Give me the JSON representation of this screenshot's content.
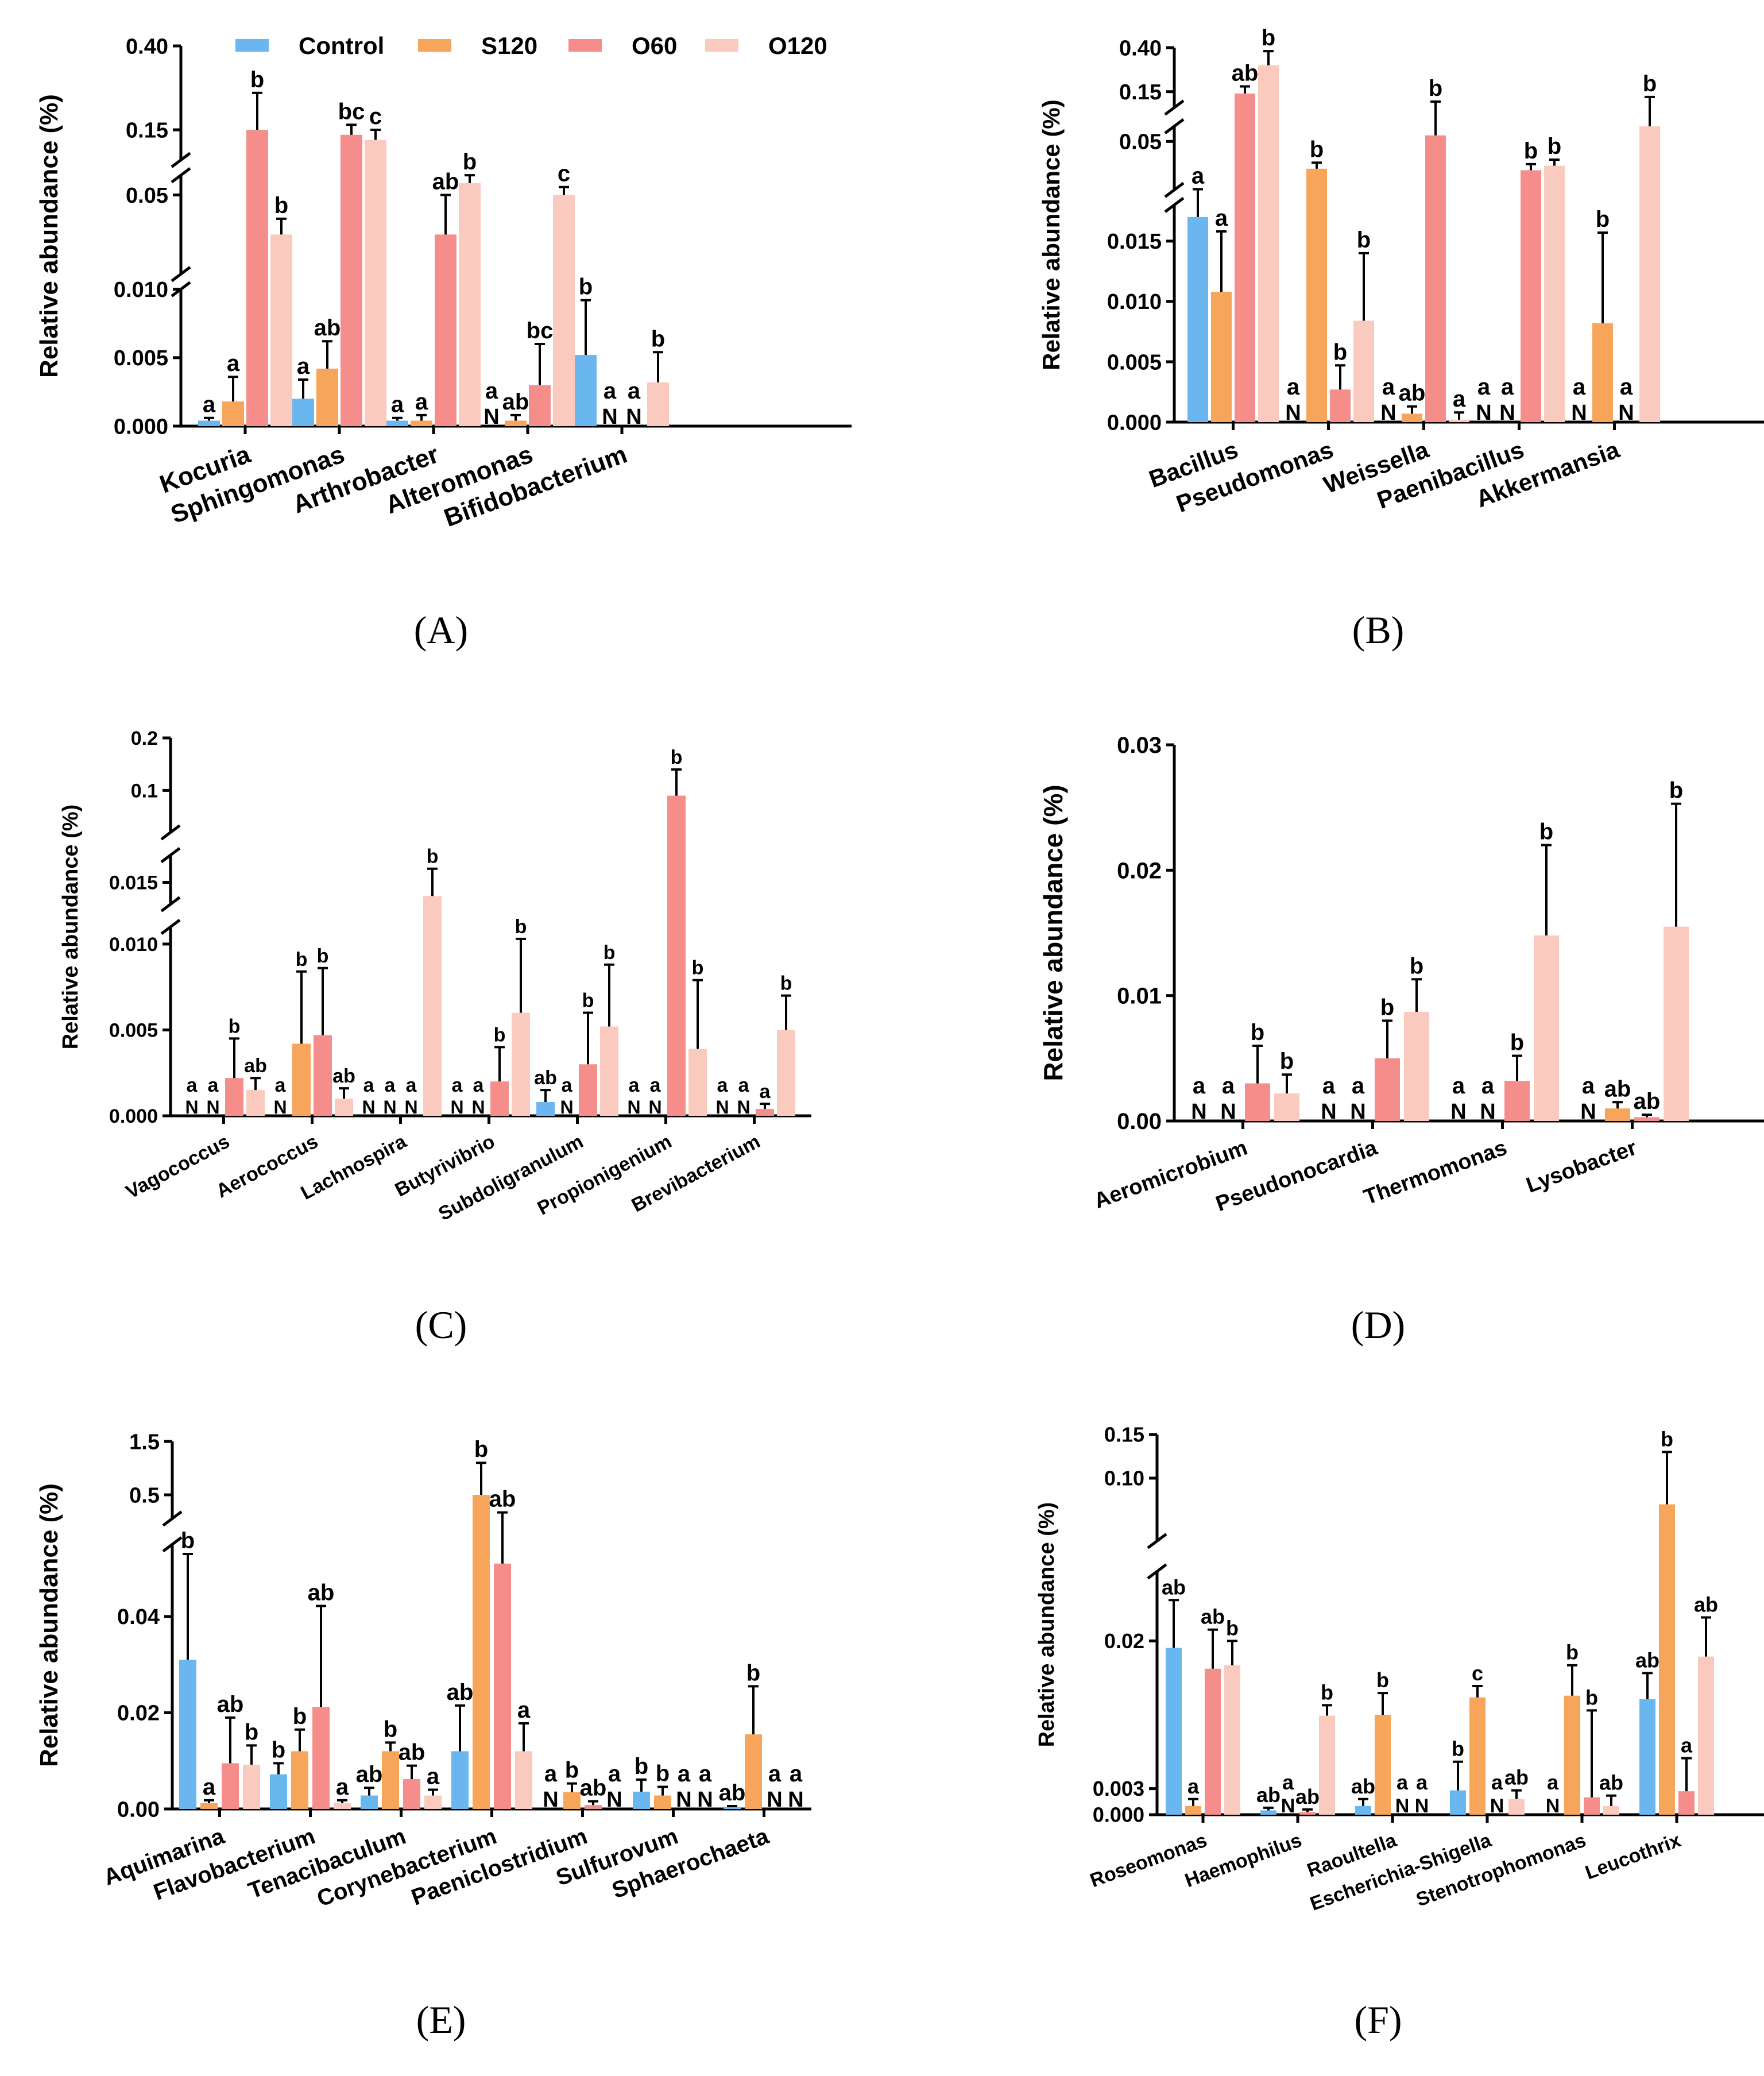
{
  "legend": {
    "series": [
      "Control",
      "S120",
      "O60",
      "O120"
    ],
    "colors": [
      "#6ab7f0",
      "#f7a55a",
      "#f58e8a",
      "#fbcabe"
    ]
  },
  "chart_data": [
    {
      "panel": "(A)",
      "type": "bar",
      "ylabel": "Relative abundance (%)",
      "categories": [
        "Kocuria",
        "Sphingomonas",
        "Arthrobacter",
        "Alteromonas",
        "Bifidobacterium"
      ],
      "axis_breaks": [
        {
          "range": [
            0,
            0.01
          ],
          "ticks": [
            0,
            0.005,
            0.01
          ],
          "tick_labels": [
            "0.000",
            "0.005",
            "0.010"
          ]
        },
        {
          "range": [
            0.01,
            0.06
          ],
          "ticks": [
            0.05
          ],
          "tick_labels": [
            "0.05"
          ]
        },
        {
          "range": [
            0.06,
            0.4
          ],
          "ticks": [
            0.15,
            0.4
          ],
          "tick_labels": [
            "0.15",
            "0.40"
          ]
        }
      ],
      "series": [
        {
          "name": "Control",
          "values": [
            0.0004,
            0.002,
            0.0004,
            0,
            0.0052
          ],
          "errors": [
            0.0002,
            0.0014,
            0.0002,
            0,
            0.004
          ],
          "sig": [
            "a",
            "a",
            "a",
            "a",
            "b"
          ],
          "nd": [
            false,
            false,
            false,
            true,
            false
          ]
        },
        {
          "name": "S120",
          "values": [
            0.0018,
            0.0042,
            0.0004,
            0.0004,
            0
          ],
          "errors": [
            0.0018,
            0.002,
            0.0004,
            0.0004,
            0
          ],
          "sig": [
            "a",
            "ab",
            "a",
            "ab",
            "a"
          ],
          "nd": [
            false,
            false,
            false,
            false,
            true
          ]
        },
        {
          "name": "O60",
          "values": [
            0.15,
            0.135,
            0.03,
            0.003,
            0
          ],
          "errors": [
            0.11,
            0.03,
            0.02,
            0.003,
            0
          ],
          "sig": [
            "b",
            "bc",
            "ab",
            "bc",
            "a"
          ],
          "nd": [
            false,
            false,
            false,
            false,
            true
          ]
        },
        {
          "name": "O120",
          "values": [
            0.03,
            0.12,
            0.056,
            0.05,
            0.0032
          ],
          "errors": [
            0.008,
            0.03,
            0.004,
            0.004,
            0.0022
          ],
          "sig": [
            "b",
            "c",
            "b",
            "c",
            "b"
          ],
          "nd": [
            false,
            false,
            false,
            false,
            false
          ]
        }
      ]
    },
    {
      "panel": "(B)",
      "type": "bar",
      "ylabel": "Relative abundance (%)",
      "categories": [
        "Bacillus",
        "Pseudomonas",
        "Weissella",
        "Paenibacillus",
        "Akkermansia"
      ],
      "axis_breaks": [
        {
          "range": [
            0,
            0.018
          ],
          "ticks": [
            0,
            0.005,
            0.01,
            0.015
          ],
          "tick_labels": [
            "0.000",
            "0.005",
            "0.010",
            "0.015"
          ]
        },
        {
          "range": [
            0.018,
            0.06
          ],
          "ticks": [
            0.05
          ],
          "tick_labels": [
            "0.05"
          ]
        },
        {
          "range": [
            0.06,
            0.4
          ],
          "ticks": [
            0.15,
            0.4
          ],
          "tick_labels": [
            "0.15",
            "0.40"
          ]
        }
      ],
      "series": [
        {
          "name": "Control",
          "values": [
            0.017,
            0,
            0,
            0,
            0
          ],
          "errors": [
            0.0015,
            0,
            0,
            0,
            0
          ],
          "sig": [
            "a",
            "a",
            "a",
            "a",
            "a"
          ],
          "nd": [
            false,
            true,
            true,
            true,
            true
          ]
        },
        {
          "name": "S120",
          "values": [
            0.0108,
            0.032,
            0.0007,
            0,
            0.0082
          ],
          "errors": [
            0.005,
            0.004,
            0.0006,
            0,
            0.0075
          ],
          "sig": [
            "a",
            "b",
            "ab",
            "a",
            "b"
          ],
          "nd": [
            false,
            false,
            false,
            true,
            false
          ]
        },
        {
          "name": "O60",
          "values": [
            0.14,
            0.0027,
            0.054,
            0.031,
            0
          ],
          "errors": [
            0.04,
            0.002,
            0.04,
            0.004,
            0
          ],
          "sig": [
            "ab",
            "b",
            "b",
            "b",
            "a"
          ],
          "nd": [
            false,
            false,
            false,
            false,
            true
          ]
        },
        {
          "name": "O120",
          "values": [
            0.3,
            0.0084,
            0.0002,
            0.034,
            0.06
          ],
          "errors": [
            0.08,
            0.0056,
            0.0006,
            0.004,
            0.06
          ],
          "sig": [
            "b",
            "b",
            "a",
            "b",
            "b"
          ],
          "nd": [
            false,
            false,
            false,
            false,
            false
          ]
        }
      ]
    },
    {
      "panel": "(C)",
      "type": "bar",
      "ylabel": "Relative abundance (%)",
      "categories": [
        "Vagococcus",
        "Aerococcus",
        "Lachnospira",
        "Butyrivibrio",
        "Subdoligranulum",
        "Propionigenium",
        "Brevibacterium"
      ],
      "axis_breaks": [
        {
          "range": [
            0,
            0.011
          ],
          "ticks": [
            0,
            0.005,
            0.01
          ],
          "tick_labels": [
            "0.000",
            "0.005",
            "0.010"
          ]
        },
        {
          "range": [
            0.011,
            0.02
          ],
          "ticks": [
            0.015
          ],
          "tick_labels": [
            "0.015"
          ]
        },
        {
          "range": [
            0.02,
            0.2
          ],
          "ticks": [
            0.1,
            0.2
          ],
          "tick_labels": [
            "0.1",
            "0.2"
          ]
        }
      ],
      "series": [
        {
          "name": "Control",
          "values": [
            0,
            0,
            0,
            0,
            0.0008,
            0,
            0
          ],
          "errors": [
            0,
            0,
            0,
            0,
            0.0007,
            0,
            0
          ],
          "sig": [
            "a",
            "a",
            "a",
            "a",
            "ab",
            "a",
            "a"
          ],
          "nd": [
            true,
            true,
            true,
            true,
            false,
            true,
            true
          ]
        },
        {
          "name": "S120",
          "values": [
            0,
            0.0042,
            0,
            0,
            0,
            0,
            0
          ],
          "errors": [
            0,
            0.0042,
            0,
            0,
            0,
            0,
            0
          ],
          "sig": [
            "a",
            "b",
            "a",
            "a",
            "a",
            "a",
            "a"
          ],
          "nd": [
            true,
            false,
            true,
            true,
            true,
            true,
            true
          ]
        },
        {
          "name": "O60",
          "values": [
            0.0022,
            0.0047,
            0,
            0.002,
            0.003,
            0.09,
            0.0004
          ],
          "errors": [
            0.0023,
            0.0039,
            0,
            0.002,
            0.003,
            0.05,
            0.0003
          ],
          "sig": [
            "b",
            "b",
            "a",
            "b",
            "b",
            "b",
            "a"
          ],
          "nd": [
            false,
            false,
            true,
            false,
            false,
            false,
            false
          ]
        },
        {
          "name": "O120",
          "values": [
            0.0015,
            0.001,
            0.0125,
            0.006,
            0.0052,
            0.0039,
            0.005
          ],
          "errors": [
            0.0007,
            0.0006,
            0.005,
            0.0043,
            0.0036,
            0.004,
            0.002
          ],
          "sig": [
            "ab",
            "ab",
            "b",
            "b",
            "b",
            "b",
            "b"
          ],
          "nd": [
            false,
            false,
            false,
            false,
            false,
            false,
            false
          ]
        }
      ]
    },
    {
      "panel": "(D)",
      "type": "bar",
      "ylabel": "Relative abundance (%)",
      "categories": [
        "Aeromicrobium",
        "Pseudonocardia",
        "Thermomonas",
        "Lysobacter"
      ],
      "axis_breaks": [
        {
          "range": [
            0,
            0.03
          ],
          "ticks": [
            0,
            0.01,
            0.02,
            0.03
          ],
          "tick_labels": [
            "0.00",
            "0.01",
            "0.02",
            "0.03"
          ]
        }
      ],
      "series": [
        {
          "name": "Control",
          "values": [
            0,
            0,
            0,
            0
          ],
          "errors": [
            0,
            0,
            0,
            0
          ],
          "sig": [
            "a",
            "a",
            "a",
            "a"
          ],
          "nd": [
            true,
            true,
            true,
            true
          ]
        },
        {
          "name": "S120",
          "values": [
            0,
            0,
            0,
            0.001
          ],
          "errors": [
            0,
            0,
            0,
            0.0005
          ],
          "sig": [
            "a",
            "a",
            "a",
            "ab"
          ],
          "nd": [
            true,
            true,
            true,
            false
          ]
        },
        {
          "name": "O60",
          "values": [
            0.003,
            0.005,
            0.0032,
            0.0003
          ],
          "errors": [
            0.003,
            0.003,
            0.002,
            0.0002
          ],
          "sig": [
            "b",
            "b",
            "b",
            "ab"
          ],
          "nd": [
            false,
            false,
            false,
            false
          ]
        },
        {
          "name": "O120",
          "values": [
            0.0022,
            0.0087,
            0.0148,
            0.0155
          ],
          "errors": [
            0.0015,
            0.0026,
            0.0072,
            0.0098
          ],
          "sig": [
            "b",
            "b",
            "b",
            "b"
          ],
          "nd": [
            false,
            false,
            false,
            false
          ]
        }
      ]
    },
    {
      "panel": "(E)",
      "type": "bar",
      "ylabel": "Relative abundance (%)",
      "categories": [
        "Aquimarina",
        "Flavobacterium",
        "Tenacibaculum",
        "Corynebacterium",
        "Paeniclostridium",
        "Sulfurovum",
        "Sphaerochaeta"
      ],
      "axis_breaks": [
        {
          "range": [
            0,
            0.055
          ],
          "ticks": [
            0,
            0.02,
            0.04
          ],
          "tick_labels": [
            "0.00",
            "0.02",
            "0.04"
          ]
        },
        {
          "range": [
            0.055,
            1.5
          ],
          "ticks": [
            0.5,
            1.5
          ],
          "tick_labels": [
            "0.5",
            "1.5"
          ]
        }
      ],
      "series": [
        {
          "name": "Control",
          "values": [
            0.031,
            0.0072,
            0.0028,
            0.012,
            0,
            0.0036,
            0.0004
          ],
          "errors": [
            0.022,
            0.0023,
            0.0016,
            0.0095,
            0,
            0.0025,
            0.0002
          ],
          "sig": [
            "b",
            "b",
            "ab",
            "ab",
            "a",
            "b",
            "ab"
          ],
          "nd": [
            false,
            false,
            false,
            false,
            true,
            false,
            false
          ]
        },
        {
          "name": "S120",
          "values": [
            0.0012,
            0.012,
            0.012,
            0.5,
            0.0035,
            0.0028,
            0.0155
          ],
          "errors": [
            0.0006,
            0.0045,
            0.0018,
            0.6,
            0.0018,
            0.0018,
            0.01
          ],
          "sig": [
            "a",
            "b",
            "b",
            "b",
            "b",
            "b",
            "b"
          ],
          "nd": [
            false,
            false,
            false,
            false,
            false,
            false,
            false
          ]
        },
        {
          "name": "O60",
          "values": [
            0.0095,
            0.0212,
            0.0062,
            0.051,
            0.0008,
            0,
            0
          ],
          "errors": [
            0.0095,
            0.021,
            0.0028,
            0.12,
            0.0008,
            0,
            0
          ],
          "sig": [
            "ab",
            "ab",
            "ab",
            "ab",
            "ab",
            "a",
            "a"
          ],
          "nd": [
            false,
            false,
            false,
            false,
            false,
            true,
            true
          ]
        },
        {
          "name": "O120",
          "values": [
            0.0092,
            0.0012,
            0.0028,
            0.012,
            0,
            0,
            0
          ],
          "errors": [
            0.004,
            0.0006,
            0.0012,
            0.0058,
            0,
            0,
            0
          ],
          "sig": [
            "b",
            "a",
            "a",
            "a",
            "a",
            "a",
            "a"
          ],
          "nd": [
            false,
            false,
            false,
            false,
            true,
            true,
            true
          ]
        }
      ]
    },
    {
      "panel": "(F)",
      "type": "bar",
      "ylabel": "Relative abundance (%)",
      "categories": [
        "Roseomonas",
        "Haemophilus",
        "Raoultella",
        "Escherichia-Shigella",
        "Stenotrophomonas",
        "Leucothrix"
      ],
      "axis_breaks": [
        {
          "range": [
            0,
            0.028
          ],
          "ticks": [
            0,
            0.003,
            0.02
          ],
          "tick_labels": [
            "0.000",
            "0.003",
            "0.02"
          ]
        },
        {
          "range": [
            0.028,
            0.15
          ],
          "ticks": [
            0.1,
            0.15
          ],
          "tick_labels": [
            "0.10",
            "0.15"
          ]
        }
      ],
      "series": [
        {
          "name": "Control",
          "values": [
            0.0192,
            0.0005,
            0.001,
            0.0028,
            0,
            0.0133
          ],
          "errors": [
            0.0055,
            0.0003,
            0.0008,
            0.0033,
            0,
            0.003
          ],
          "sig": [
            "ab",
            "ab",
            "ab",
            "b",
            "a",
            "ab"
          ],
          "nd": [
            false,
            false,
            false,
            false,
            true,
            false
          ]
        },
        {
          "name": "S120",
          "values": [
            0.001,
            0,
            0.0115,
            0.0135,
            0.0137,
            0.07
          ],
          "errors": [
            0.0008,
            0,
            0.0025,
            0.0013,
            0.0035,
            0.06
          ],
          "sig": [
            "a",
            "a",
            "b",
            "c",
            "b",
            "b"
          ],
          "nd": [
            false,
            true,
            false,
            false,
            false,
            false
          ]
        },
        {
          "name": "O60",
          "values": [
            0.0168,
            0.0003,
            0,
            0,
            0.002,
            0.0027
          ],
          "errors": [
            0.0045,
            0.0003,
            0,
            0,
            0.01,
            0.0038
          ],
          "sig": [
            "ab",
            "ab",
            "a",
            "a",
            "b",
            "a"
          ],
          "nd": [
            false,
            false,
            true,
            true,
            false,
            false
          ]
        },
        {
          "name": "O120",
          "values": [
            0.0172,
            0.0114,
            0,
            0.0018,
            0.001,
            0.0182
          ],
          "errors": [
            0.0028,
            0.0012,
            0,
            0.001,
            0.0012,
            0.0045
          ],
          "sig": [
            "b",
            "b",
            "a",
            "ab",
            "ab",
            "ab"
          ],
          "nd": [
            false,
            false,
            true,
            false,
            false,
            false
          ]
        }
      ]
    }
  ]
}
